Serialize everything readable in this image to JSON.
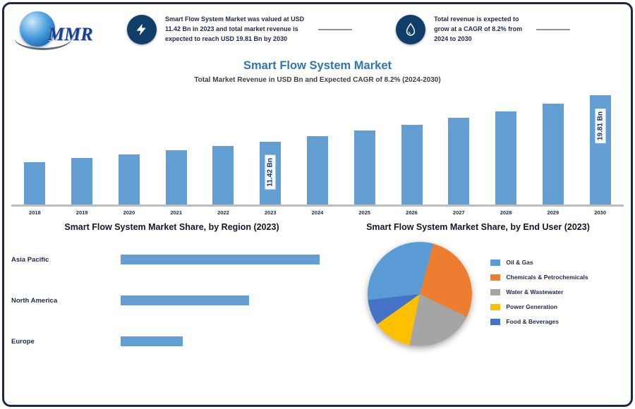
{
  "brand": {
    "logo_text": "MMR"
  },
  "header": {
    "fact1_lines": [
      "Smart Flow System Market was valued at USD",
      "11.42 Bn in 2023 and total market revenue is",
      "expected to reach USD 19.81 Bn by 2030"
    ],
    "fact2_lines": [
      "Total revenue is expected to",
      "grow at a CAGR of 8.2% from",
      "2024 to 2030"
    ]
  },
  "colors": {
    "accent_blue": "#2e75b6",
    "bar_blue": "#639fd3",
    "frame_navy": "#1b2a44",
    "icon_circle_navy": "#0f3e68"
  },
  "chart_data": [
    {
      "type": "bar",
      "title": "Smart Flow System Market",
      "subtitle": "Total Market Revenue in USD Bn and Expected CAGR of 8.2% (2024-2030)",
      "unit": "USD Bn",
      "categories": [
        "2018",
        "2019",
        "2020",
        "2021",
        "2022",
        "2023",
        "2024",
        "2025",
        "2026",
        "2027",
        "2028",
        "2029",
        "2030"
      ],
      "values": [
        7.7,
        8.4,
        9.1,
        9.8,
        10.6,
        11.42,
        12.4,
        13.4,
        14.5,
        15.7,
        16.9,
        18.3,
        19.81
      ],
      "point_labels": {
        "2023": "11.42 Bn",
        "2030": "19.81 Bn"
      },
      "ylim": [
        0,
        19.81
      ],
      "bar_color": "#639fd3",
      "grid": false
    },
    {
      "type": "bar",
      "orientation": "horizontal",
      "title": "Smart Flow System Market Share, by Region (2023)",
      "categories": [
        "Asia Pacific",
        "North America",
        "Europe"
      ],
      "values": [
        45,
        29,
        14
      ],
      "unit": "%",
      "bar_color": "#639fd3"
    },
    {
      "type": "pie",
      "title": "Smart Flow System Market Share, by End User (2023)",
      "labels": [
        "Oil & Gas",
        "Chemicals & Petrochemicals",
        "Water & Wastewater",
        "Power Generation",
        "Food & Beverages"
      ],
      "values": [
        31,
        28,
        21,
        12,
        8
      ],
      "colors": [
        "#5b9bd5",
        "#ed7d31",
        "#a5a5a5",
        "#ffc000",
        "#4472c4"
      ],
      "rotation": 15,
      "draw_order": [
        1,
        2,
        3,
        4,
        0
      ],
      "legend_position": "right"
    }
  ]
}
